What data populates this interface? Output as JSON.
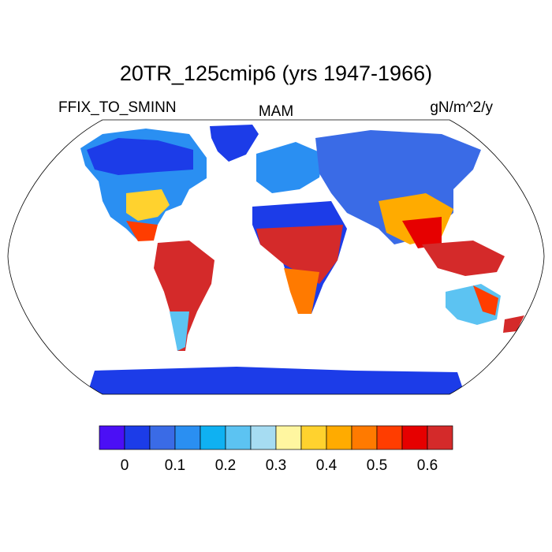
{
  "title": "20TR_125cmip6 (yrs 1947-1966)",
  "variable": "FFIX_TO_SMINN",
  "season": "MAM",
  "units": "gN/m^2/y",
  "colorbar": {
    "colors": [
      "#4b0ff5",
      "#1c3ce8",
      "#3a6be6",
      "#2a8ff2",
      "#0fb1f2",
      "#5cc3f2",
      "#a6dcf2",
      "#fff6a0",
      "#ffd22e",
      "#ffab00",
      "#ff7a00",
      "#ff3d00",
      "#e60000",
      "#d42a2a"
    ],
    "tick_labels": [
      "0",
      "0.1",
      "0.2",
      "0.3",
      "0.4",
      "0.5",
      "0.6"
    ]
  }
}
